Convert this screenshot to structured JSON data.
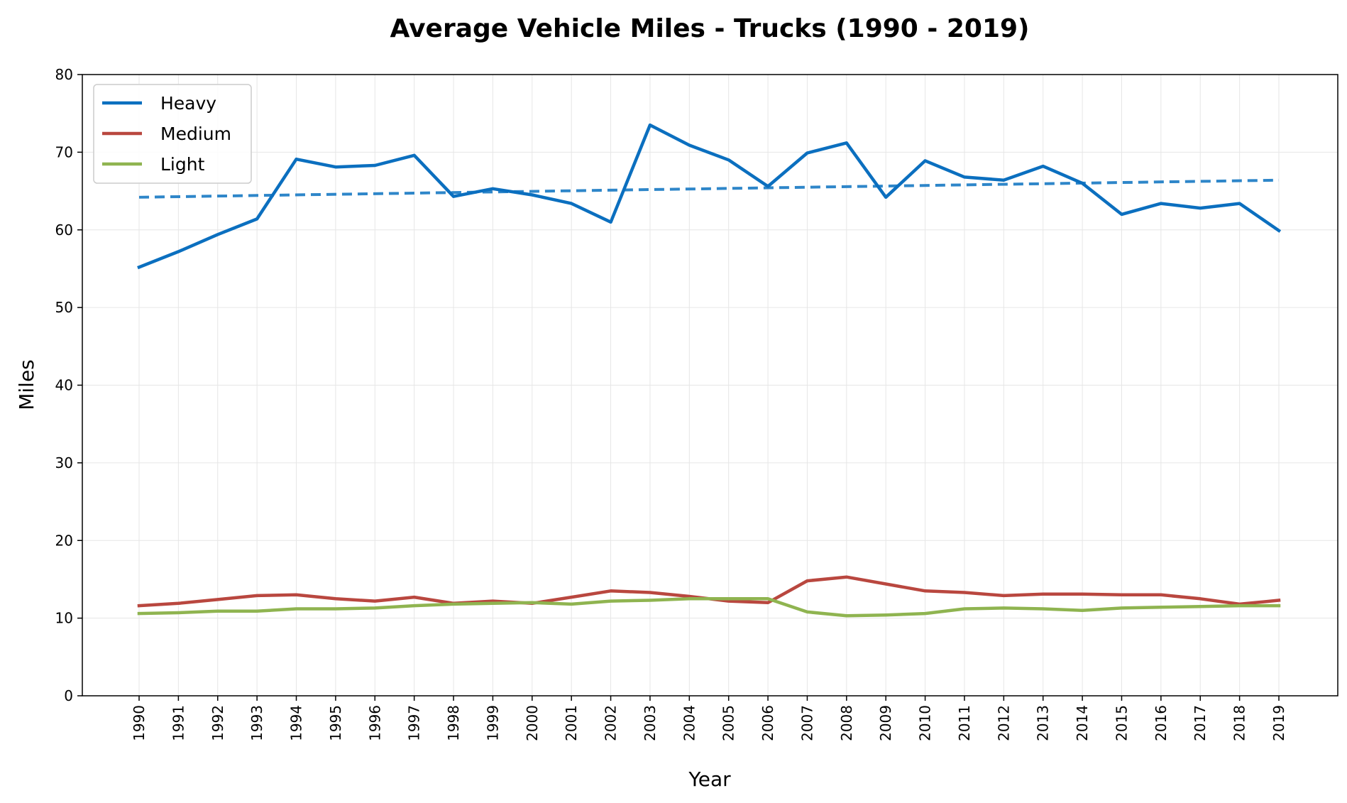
{
  "chart_data": {
    "type": "line",
    "title": "Average Vehicle Miles - Trucks (1990 - 2019)",
    "xlabel": "Year",
    "ylabel": "Miles",
    "ylim": [
      0,
      80
    ],
    "yticks": [
      "0",
      "10",
      "20",
      "30",
      "40",
      "50",
      "60",
      "70",
      "80"
    ],
    "categories": [
      "1990",
      "1991",
      "1992",
      "1993",
      "1994",
      "1995",
      "1996",
      "1997",
      "1998",
      "1999",
      "2000",
      "2001",
      "2002",
      "2003",
      "2004",
      "2005",
      "2006",
      "2007",
      "2008",
      "2009",
      "2010",
      "2011",
      "2012",
      "2013",
      "2014",
      "2015",
      "2016",
      "2017",
      "2018",
      "2019"
    ],
    "grid": true,
    "legend_position": "top-left",
    "series": [
      {
        "name": "Heavy",
        "color": "#0b6fbf",
        "values": [
          55.2,
          57.2,
          59.4,
          61.4,
          69.1,
          68.1,
          68.3,
          69.6,
          64.3,
          65.3,
          64.5,
          63.4,
          61.0,
          73.5,
          70.9,
          69.0,
          65.6,
          69.9,
          71.2,
          64.2,
          68.9,
          66.8,
          66.4,
          68.2,
          66.0,
          62.0,
          63.4,
          62.8,
          63.4,
          59.9
        ]
      },
      {
        "name": "Medium",
        "color": "#b9473f",
        "values": [
          11.6,
          11.9,
          12.4,
          12.9,
          13.0,
          12.5,
          12.2,
          12.7,
          11.9,
          12.2,
          11.9,
          12.7,
          13.5,
          13.3,
          12.8,
          12.2,
          12.0,
          14.8,
          15.3,
          14.4,
          13.5,
          13.3,
          12.9,
          13.1,
          13.1,
          13.0,
          13.0,
          12.5,
          11.8,
          12.3
        ]
      },
      {
        "name": "Light",
        "color": "#8fb450",
        "values": [
          10.6,
          10.7,
          10.9,
          10.9,
          11.2,
          11.2,
          11.3,
          11.6,
          11.8,
          11.9,
          12.0,
          11.8,
          12.2,
          12.3,
          12.5,
          12.5,
          12.5,
          10.8,
          10.3,
          10.4,
          10.6,
          11.2,
          11.3,
          11.2,
          11.0,
          11.3,
          11.4,
          11.5,
          11.6,
          11.6
        ]
      }
    ],
    "trendline": {
      "color": "#2e86c9",
      "style": "dashed",
      "start": 64.2,
      "end": 66.4
    }
  }
}
